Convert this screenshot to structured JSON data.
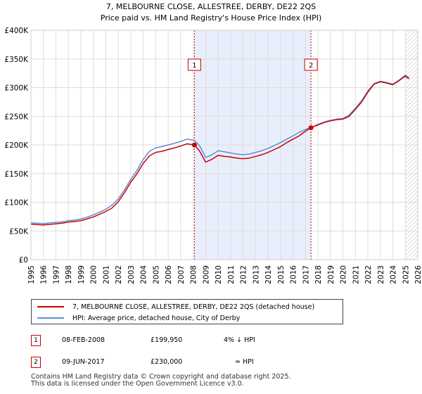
{
  "chart_data": {
    "type": "line",
    "title": "7, MELBOURNE CLOSE, ALLESTREE, DERBY, DE22 2QS",
    "subtitle": "Price paid vs. HM Land Registry's House Price Index (HPI)",
    "ylim": [
      0,
      400000
    ],
    "xlim": [
      1995,
      2026
    ],
    "y_ticks": [
      {
        "value": 0,
        "label": "£0"
      },
      {
        "value": 50000,
        "label": "£50K"
      },
      {
        "value": 100000,
        "label": "£100K"
      },
      {
        "value": 150000,
        "label": "£150K"
      },
      {
        "value": 200000,
        "label": "£200K"
      },
      {
        "value": 250000,
        "label": "£250K"
      },
      {
        "value": 300000,
        "label": "£300K"
      },
      {
        "value": 350000,
        "label": "£350K"
      },
      {
        "value": 400000,
        "label": "£400K"
      }
    ],
    "x_ticks": [
      "1995",
      "1996",
      "1997",
      "1998",
      "1999",
      "2000",
      "2001",
      "2002",
      "2003",
      "2004",
      "2005",
      "2006",
      "2007",
      "2008",
      "2009",
      "2010",
      "2011",
      "2012",
      "2013",
      "2014",
      "2015",
      "2016",
      "2017",
      "2018",
      "2019",
      "2020",
      "2021",
      "2022",
      "2023",
      "2024",
      "2025",
      "2026"
    ],
    "shaded_region": {
      "from": 2008.1,
      "to": 2017.44
    },
    "forecast_hatch_from": 2025.0,
    "series": [
      {
        "name": "7, MELBOURNE CLOSE, ALLESTREE, DERBY, DE22 2QS (detached house)",
        "color": "#cc0000",
        "points": [
          [
            1995.0,
            62000
          ],
          [
            1995.5,
            61000
          ],
          [
            1996.0,
            60500
          ],
          [
            1996.5,
            61500
          ],
          [
            1997.0,
            62500
          ],
          [
            1997.5,
            63500
          ],
          [
            1998.0,
            65500
          ],
          [
            1998.5,
            66500
          ],
          [
            1999.0,
            68000
          ],
          [
            1999.5,
            71000
          ],
          [
            2000.0,
            74500
          ],
          [
            2000.5,
            79000
          ],
          [
            2001.0,
            84000
          ],
          [
            2001.5,
            90000
          ],
          [
            2002.0,
            101000
          ],
          [
            2002.5,
            117000
          ],
          [
            2003.0,
            135000
          ],
          [
            2003.5,
            150000
          ],
          [
            2004.0,
            168000
          ],
          [
            2004.5,
            181000
          ],
          [
            2005.0,
            187000
          ],
          [
            2005.5,
            189000
          ],
          [
            2006.0,
            192000
          ],
          [
            2006.5,
            195000
          ],
          [
            2007.0,
            198000
          ],
          [
            2007.5,
            202000
          ],
          [
            2008.1,
            199950
          ],
          [
            2008.5,
            190000
          ],
          [
            2009.0,
            170000
          ],
          [
            2009.5,
            175000
          ],
          [
            2010.0,
            182000
          ],
          [
            2010.5,
            180000
          ],
          [
            2011.0,
            179000
          ],
          [
            2011.5,
            177000
          ],
          [
            2012.0,
            176000
          ],
          [
            2012.5,
            177000
          ],
          [
            2013.0,
            180000
          ],
          [
            2013.5,
            183000
          ],
          [
            2014.0,
            187000
          ],
          [
            2014.5,
            192000
          ],
          [
            2015.0,
            197000
          ],
          [
            2015.5,
            204000
          ],
          [
            2016.0,
            210000
          ],
          [
            2016.5,
            216000
          ],
          [
            2017.0,
            224000
          ],
          [
            2017.44,
            230000
          ],
          [
            2018.0,
            235000
          ],
          [
            2018.5,
            239000
          ],
          [
            2019.0,
            242000
          ],
          [
            2019.5,
            244000
          ],
          [
            2020.0,
            245000
          ],
          [
            2020.5,
            250000
          ],
          [
            2021.0,
            262000
          ],
          [
            2021.5,
            275000
          ],
          [
            2022.0,
            292000
          ],
          [
            2022.5,
            306000
          ],
          [
            2023.0,
            310000
          ],
          [
            2023.5,
            308000
          ],
          [
            2024.0,
            305000
          ],
          [
            2024.5,
            312000
          ],
          [
            2025.0,
            320000
          ],
          [
            2025.3,
            315000
          ]
        ]
      },
      {
        "name": "HPI: Average price, detached house, City of Derby",
        "color": "#5b8fd6",
        "points": [
          [
            1995.0,
            64000
          ],
          [
            1995.5,
            63500
          ],
          [
            1996.0,
            63000
          ],
          [
            1996.5,
            64000
          ],
          [
            1997.0,
            65000
          ],
          [
            1997.5,
            66000
          ],
          [
            1998.0,
            68000
          ],
          [
            1998.5,
            69000
          ],
          [
            1999.0,
            71000
          ],
          [
            1999.5,
            74000
          ],
          [
            2000.0,
            78000
          ],
          [
            2000.5,
            83000
          ],
          [
            2001.0,
            88000
          ],
          [
            2001.5,
            95000
          ],
          [
            2002.0,
            106000
          ],
          [
            2002.5,
            122000
          ],
          [
            2003.0,
            140000
          ],
          [
            2003.5,
            156000
          ],
          [
            2004.0,
            175000
          ],
          [
            2004.5,
            189000
          ],
          [
            2005.0,
            195000
          ],
          [
            2005.5,
            197000
          ],
          [
            2006.0,
            200000
          ],
          [
            2006.5,
            203000
          ],
          [
            2007.0,
            206000
          ],
          [
            2007.5,
            210000
          ],
          [
            2008.1,
            208000
          ],
          [
            2008.5,
            199000
          ],
          [
            2009.0,
            178000
          ],
          [
            2009.5,
            183000
          ],
          [
            2010.0,
            190000
          ],
          [
            2010.5,
            188000
          ],
          [
            2011.0,
            186000
          ],
          [
            2011.5,
            184000
          ],
          [
            2012.0,
            183000
          ],
          [
            2012.5,
            184000
          ],
          [
            2013.0,
            187000
          ],
          [
            2013.5,
            190000
          ],
          [
            2014.0,
            194000
          ],
          [
            2014.5,
            199000
          ],
          [
            2015.0,
            204000
          ],
          [
            2015.5,
            210000
          ],
          [
            2016.0,
            216000
          ],
          [
            2016.5,
            222000
          ],
          [
            2017.0,
            227000
          ],
          [
            2017.44,
            230000
          ],
          [
            2018.0,
            236000
          ],
          [
            2018.5,
            240000
          ],
          [
            2019.0,
            243000
          ],
          [
            2019.5,
            245000
          ],
          [
            2020.0,
            246000
          ],
          [
            2020.5,
            252000
          ],
          [
            2021.0,
            264000
          ],
          [
            2021.5,
            277000
          ],
          [
            2022.0,
            294000
          ],
          [
            2022.5,
            307000
          ],
          [
            2023.0,
            311000
          ],
          [
            2023.5,
            309000
          ],
          [
            2024.0,
            306000
          ],
          [
            2024.5,
            313000
          ],
          [
            2025.0,
            322000
          ],
          [
            2025.3,
            317000
          ]
        ]
      }
    ],
    "markers": [
      {
        "label": "1",
        "x": 2008.1,
        "y": 199950
      },
      {
        "label": "2",
        "x": 2017.44,
        "y": 230000
      }
    ]
  },
  "legend": {
    "property_label": "7, MELBOURNE CLOSE, ALLESTREE, DERBY, DE22 2QS (detached house)",
    "hpi_label": "HPI: Average price, detached house, City of Derby",
    "property_color": "#cc0000",
    "hpi_color": "#5b8fd6"
  },
  "transactions": [
    {
      "num": "1",
      "date": "08-FEB-2008",
      "price": "£199,950",
      "hpi": "4% ↓ HPI"
    },
    {
      "num": "2",
      "date": "09-JUN-2017",
      "price": "£230,000",
      "hpi": "≈ HPI"
    }
  ],
  "footer": {
    "line1": "Contains HM Land Registry data © Crown copyright and database right 2025.",
    "line2": "This data is licensed under the Open Government Licence v3.0."
  }
}
